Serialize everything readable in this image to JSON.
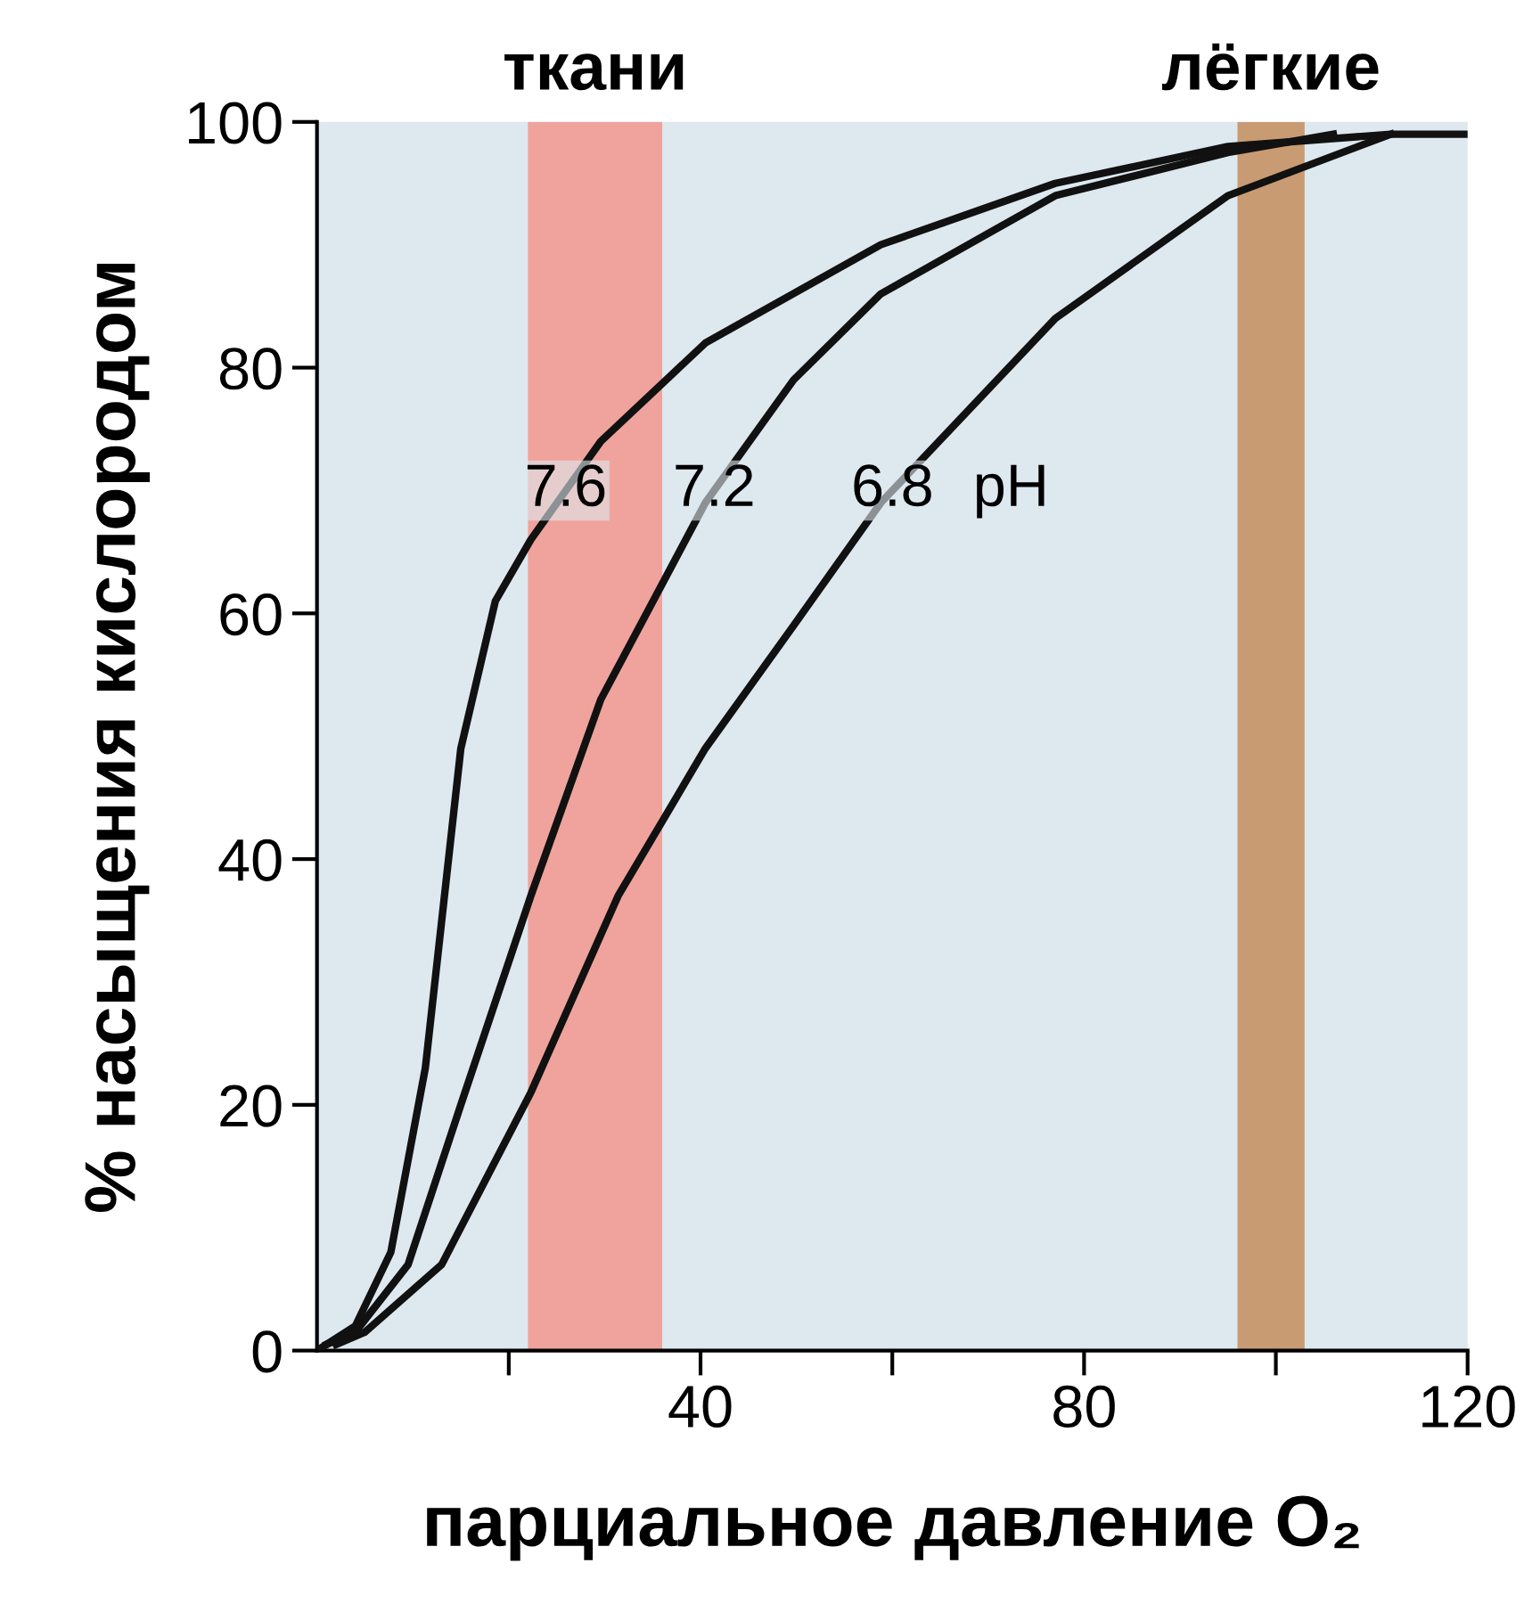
{
  "chart_data": {
    "type": "line",
    "xlabel": "парциальное давление O₂",
    "ylabel": "% насыщения кислородом",
    "xlim": [
      0,
      120
    ],
    "ylim": [
      0,
      100
    ],
    "xticks": [
      {
        "value": 20,
        "label": null
      },
      40,
      {
        "value": 60,
        "label": null
      },
      80,
      {
        "value": 100,
        "label": null
      },
      120
    ],
    "yticks": [
      0,
      20,
      40,
      60,
      80,
      100
    ],
    "grid": false,
    "legend": false,
    "marker": "none",
    "line_style": "solid",
    "bands": [
      {
        "axis": "x",
        "from": 22,
        "to": 36,
        "label": "ткани",
        "color": "#efa39c"
      },
      {
        "axis": "x",
        "from": 96,
        "to": 103,
        "label": "лёгкие",
        "color": "#c99b72"
      }
    ],
    "annotations": [
      "pH"
    ],
    "series": [
      {
        "name": "7.6",
        "color": "#111111",
        "x": [
          0,
          4,
          7.7,
          11.3,
          15,
          18.6,
          22.3,
          29.6,
          40.5,
          58.8,
          77,
          95,
          112,
          120
        ],
        "values": [
          0,
          2,
          8,
          23,
          49,
          61,
          66,
          74,
          82,
          90,
          95,
          98,
          99,
          99
        ]
      },
      {
        "name": "7.2",
        "color": "#111111",
        "x": [
          1,
          4,
          9.5,
          15,
          22.3,
          29.6,
          40.5,
          49.7,
          58.8,
          77,
          95,
          106
        ],
        "values": [
          0.5,
          1.5,
          7,
          20,
          37,
          53,
          69,
          79,
          86,
          94,
          97.5,
          99
        ]
      },
      {
        "name": "6.8",
        "color": "#111111",
        "x": [
          2,
          5,
          13,
          22.3,
          31.4,
          40.5,
          49.7,
          58.8,
          77,
          95,
          112
        ],
        "values": [
          0.5,
          1.5,
          7,
          21,
          37,
          49,
          59,
          69,
          84,
          94,
          99
        ]
      }
    ]
  }
}
